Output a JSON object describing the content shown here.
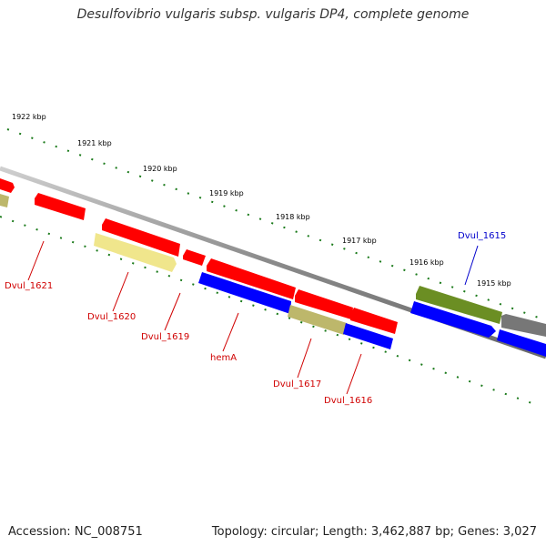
{
  "title": "Desulfovibrio vulgaris subsp. vulgaris DP4, complete genome",
  "accession": "Accession: NC_008751",
  "summary": "Topology: circular; Length: 3,462,887 bp; Genes: 3,027",
  "colors": {
    "red": "#ff0000",
    "blue": "#0000ff",
    "olive": "#6b8e23",
    "tan": "#bdb76b",
    "pale": "#f0e68c",
    "gray": "#888888"
  },
  "ticks": [
    "1922 kbp",
    "1921 kbp",
    "1920 kbp",
    "1919 kbp",
    "1918 kbp",
    "1917 kbp",
    "1916 kbp",
    "1915 kbp"
  ],
  "gene_labels": [
    "Dvul_1621",
    "Dvul_1620",
    "Dvul_1619",
    "hemA",
    "Dvul_1617",
    "Dvul_1616",
    "Dvul_1615"
  ]
}
